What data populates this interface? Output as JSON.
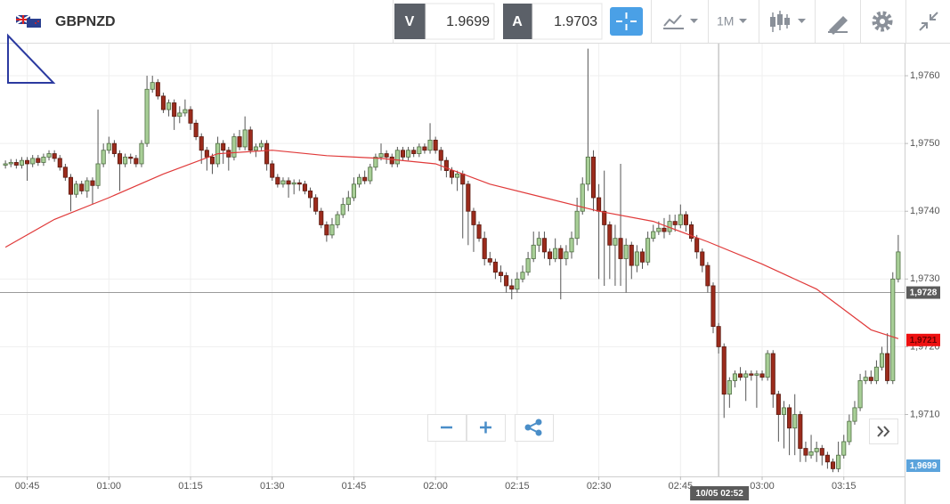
{
  "toolbar": {
    "symbol": "GBPNZD",
    "bid_label": "V",
    "bid": "1.9699",
    "ask_label": "A",
    "ask": "1.9703",
    "timeframe": "1M"
  },
  "chart_data": {
    "type": "candlestick",
    "x": [
      "00:41",
      "00:42",
      "00:43",
      "00:44",
      "00:45",
      "00:46",
      "00:47",
      "00:48",
      "00:49",
      "00:50",
      "00:51",
      "00:52",
      "00:53",
      "00:54",
      "00:55",
      "00:56",
      "00:57",
      "00:58",
      "00:59",
      "01:00",
      "01:01",
      "01:02",
      "01:03",
      "01:04",
      "01:05",
      "01:06",
      "01:07",
      "01:08",
      "01:09",
      "01:10",
      "01:11",
      "01:12",
      "01:13",
      "01:14",
      "01:15",
      "01:16",
      "01:17",
      "01:18",
      "01:19",
      "01:20",
      "01:21",
      "01:22",
      "01:23",
      "01:24",
      "01:25",
      "01:26",
      "01:27",
      "01:28",
      "01:29",
      "01:30",
      "01:31",
      "01:32",
      "01:33",
      "01:34",
      "01:35",
      "01:36",
      "01:37",
      "01:38",
      "01:39",
      "01:40",
      "01:41",
      "01:42",
      "01:43",
      "01:44",
      "01:45",
      "01:46",
      "01:47",
      "01:48",
      "01:49",
      "01:50",
      "01:51",
      "01:52",
      "01:53",
      "01:54",
      "01:55",
      "01:56",
      "01:57",
      "01:58",
      "01:59",
      "02:00",
      "02:01",
      "02:02",
      "02:03",
      "02:04",
      "02:05",
      "02:06",
      "02:07",
      "02:08",
      "02:09",
      "02:10",
      "02:11",
      "02:12",
      "02:13",
      "02:14",
      "02:15",
      "02:16",
      "02:17",
      "02:18",
      "02:19",
      "02:20",
      "02:21",
      "02:22",
      "02:23",
      "02:24",
      "02:25",
      "02:26",
      "02:27",
      "02:28",
      "02:29",
      "02:30",
      "02:31",
      "02:32",
      "02:33",
      "02:34",
      "02:35",
      "02:36",
      "02:37",
      "02:38",
      "02:39",
      "02:40",
      "02:41",
      "02:42",
      "02:43",
      "02:44",
      "02:45",
      "02:46",
      "02:47",
      "02:48",
      "02:49",
      "02:50",
      "02:51",
      "02:52",
      "02:53",
      "02:54",
      "02:55",
      "02:56",
      "02:57",
      "02:58",
      "02:59",
      "03:00",
      "03:01",
      "03:02",
      "03:03",
      "03:04",
      "03:05",
      "03:06",
      "03:07",
      "03:08",
      "03:09",
      "03:10",
      "03:11",
      "03:12",
      "03:13",
      "03:14",
      "03:15",
      "03:16",
      "03:17",
      "03:18",
      "03:19",
      "03:20",
      "03:21",
      "03:22",
      "03:23",
      "03:24",
      "03:25"
    ],
    "ohlc": [
      [
        1.97468,
        1.97475,
        1.97463,
        1.9747
      ],
      [
        1.9747,
        1.97477,
        1.97465,
        1.97472
      ],
      [
        1.97472,
        1.97477,
        1.97463,
        1.97468
      ],
      [
        1.97468,
        1.9748,
        1.97463,
        1.97475
      ],
      [
        1.97475,
        1.9748,
        1.97445,
        1.9747
      ],
      [
        1.9747,
        1.97483,
        1.97465,
        1.97478
      ],
      [
        1.97478,
        1.97483,
        1.97467,
        1.97472
      ],
      [
        1.97472,
        1.97485,
        1.97467,
        1.9748
      ],
      [
        1.9748,
        1.9749,
        1.97475,
        1.97485
      ],
      [
        1.97485,
        1.9749,
        1.97473,
        1.97478
      ],
      [
        1.97478,
        1.97483,
        1.9746,
        1.97465
      ],
      [
        1.97465,
        1.9747,
        1.97445,
        1.9745
      ],
      [
        1.9745,
        1.97455,
        1.974,
        1.97425
      ],
      [
        1.97425,
        1.97445,
        1.9742,
        1.9744
      ],
      [
        1.9744,
        1.97445,
        1.97425,
        1.9743
      ],
      [
        1.9743,
        1.9745,
        1.9742,
        1.97445
      ],
      [
        1.97445,
        1.9745,
        1.9741,
        1.97438
      ],
      [
        1.97438,
        1.9755,
        1.97433,
        1.9747
      ],
      [
        1.9747,
        1.975,
        1.97465,
        1.9749
      ],
      [
        1.9749,
        1.9751,
        1.97485,
        1.975
      ],
      [
        1.975,
        1.97505,
        1.9748,
        1.97485
      ],
      [
        1.97485,
        1.9749,
        1.9743,
        1.9747
      ],
      [
        1.9747,
        1.97485,
        1.97465,
        1.9748
      ],
      [
        1.9748,
        1.97485,
        1.9747,
        1.97478
      ],
      [
        1.97478,
        1.97483,
        1.97465,
        1.9747
      ],
      [
        1.9747,
        1.97505,
        1.97465,
        1.975
      ],
      [
        1.975,
        1.976,
        1.97495,
        1.9758
      ],
      [
        1.9758,
        1.976,
        1.97575,
        1.9759
      ],
      [
        1.9759,
        1.97595,
        1.97565,
        1.9757
      ],
      [
        1.9757,
        1.97575,
        1.97545,
        1.9755
      ],
      [
        1.9755,
        1.97565,
        1.9754,
        1.9756
      ],
      [
        1.9756,
        1.97565,
        1.9752,
        1.9754
      ],
      [
        1.9754,
        1.97555,
        1.9753,
        1.97545
      ],
      [
        1.97545,
        1.97565,
        1.9754,
        1.9755
      ],
      [
        1.9755,
        1.97555,
        1.9752,
        1.9753
      ],
      [
        1.9753,
        1.97535,
        1.97505,
        1.9751
      ],
      [
        1.9751,
        1.97515,
        1.9747,
        1.9749
      ],
      [
        1.9749,
        1.97495,
        1.9746,
        1.9748
      ],
      [
        1.9748,
        1.97485,
        1.97455,
        1.9747
      ],
      [
        1.9747,
        1.9751,
        1.97465,
        1.975
      ],
      [
        1.975,
        1.97505,
        1.9747,
        1.9749
      ],
      [
        1.9749,
        1.97495,
        1.9746,
        1.9748
      ],
      [
        1.9748,
        1.97515,
        1.97475,
        1.9751
      ],
      [
        1.9751,
        1.9752,
        1.9749,
        1.97495
      ],
      [
        1.97495,
        1.9754,
        1.9749,
        1.9752
      ],
      [
        1.9752,
        1.97525,
        1.97485,
        1.9749
      ],
      [
        1.9749,
        1.975,
        1.9748,
        1.97495
      ],
      [
        1.97495,
        1.97505,
        1.9749,
        1.975
      ],
      [
        1.975,
        1.97505,
        1.9746,
        1.9747
      ],
      [
        1.9747,
        1.97475,
        1.97445,
        1.9745
      ],
      [
        1.9745,
        1.97455,
        1.97435,
        1.9744
      ],
      [
        1.9744,
        1.9745,
        1.97435,
        1.97445
      ],
      [
        1.97445,
        1.9745,
        1.9742,
        1.9744
      ],
      [
        1.9744,
        1.97447,
        1.97425,
        1.97442
      ],
      [
        1.97442,
        1.97447,
        1.9743,
        1.9744
      ],
      [
        1.9744,
        1.97445,
        1.97425,
        1.9743
      ],
      [
        1.9743,
        1.97435,
        1.97405,
        1.9742
      ],
      [
        1.9742,
        1.97425,
        1.97395,
        1.974
      ],
      [
        1.974,
        1.97405,
        1.97375,
        1.9738
      ],
      [
        1.9738,
        1.97385,
        1.97355,
        1.97365
      ],
      [
        1.97365,
        1.9739,
        1.9736,
        1.9738
      ],
      [
        1.9738,
        1.974,
        1.97375,
        1.97395
      ],
      [
        1.97395,
        1.9742,
        1.9739,
        1.9741
      ],
      [
        1.9741,
        1.9743,
        1.974,
        1.9742
      ],
      [
        1.9742,
        1.9745,
        1.97415,
        1.9744
      ],
      [
        1.9744,
        1.97455,
        1.97435,
        1.9745
      ],
      [
        1.9745,
        1.9746,
        1.9744,
        1.97445
      ],
      [
        1.97445,
        1.9747,
        1.9744,
        1.97465
      ],
      [
        1.97465,
        1.97485,
        1.9746,
        1.9748
      ],
      [
        1.9748,
        1.975,
        1.97475,
        1.97485
      ],
      [
        1.97485,
        1.9749,
        1.9747,
        1.9748
      ],
      [
        1.9748,
        1.97485,
        1.97465,
        1.9747
      ],
      [
        1.9747,
        1.97495,
        1.97465,
        1.9749
      ],
      [
        1.9749,
        1.97495,
        1.97475,
        1.9748
      ],
      [
        1.9748,
        1.97495,
        1.97475,
        1.9749
      ],
      [
        1.9749,
        1.97495,
        1.9748,
        1.97485
      ],
      [
        1.97485,
        1.975,
        1.9748,
        1.97495
      ],
      [
        1.97495,
        1.975,
        1.97485,
        1.9749
      ],
      [
        1.9749,
        1.9753,
        1.97485,
        1.97505
      ],
      [
        1.97505,
        1.9751,
        1.97485,
        1.9749
      ],
      [
        1.9749,
        1.97495,
        1.9746,
        1.97475
      ],
      [
        1.97475,
        1.9748,
        1.9745,
        1.9746
      ],
      [
        1.9746,
        1.97465,
        1.9744,
        1.9745
      ],
      [
        1.9745,
        1.9746,
        1.9743,
        1.97455
      ],
      [
        1.97455,
        1.9746,
        1.9736,
        1.9744
      ],
      [
        1.9744,
        1.97445,
        1.9735,
        1.974
      ],
      [
        1.974,
        1.97405,
        1.9734,
        1.9738
      ],
      [
        1.9738,
        1.97385,
        1.97355,
        1.9736
      ],
      [
        1.9736,
        1.9737,
        1.9732,
        1.9733
      ],
      [
        1.9733,
        1.9734,
        1.9732,
        1.97325
      ],
      [
        1.97325,
        1.9733,
        1.973,
        1.9731
      ],
      [
        1.9731,
        1.9732,
        1.97295,
        1.97305
      ],
      [
        1.97305,
        1.9731,
        1.9728,
        1.9729
      ],
      [
        1.9729,
        1.973,
        1.9727,
        1.97285
      ],
      [
        1.97285,
        1.9731,
        1.9728,
        1.973
      ],
      [
        1.973,
        1.9732,
        1.97295,
        1.9731
      ],
      [
        1.9731,
        1.9734,
        1.97305,
        1.9733
      ],
      [
        1.9733,
        1.9737,
        1.97325,
        1.9735
      ],
      [
        1.9735,
        1.9737,
        1.9734,
        1.9736
      ],
      [
        1.9736,
        1.9737,
        1.9733,
        1.9734
      ],
      [
        1.9734,
        1.97345,
        1.9732,
        1.9733
      ],
      [
        1.9733,
        1.9736,
        1.97325,
        1.97345
      ],
      [
        1.97345,
        1.9735,
        1.9727,
        1.9733
      ],
      [
        1.9733,
        1.9735,
        1.9732,
        1.9734
      ],
      [
        1.9734,
        1.9737,
        1.9733,
        1.9736
      ],
      [
        1.9736,
        1.9742,
        1.9735,
        1.974
      ],
      [
        1.974,
        1.9745,
        1.97395,
        1.9744
      ],
      [
        1.9744,
        1.9764,
        1.9743,
        1.9748
      ],
      [
        1.9748,
        1.9749,
        1.974,
        1.9742
      ],
      [
        1.9742,
        1.9744,
        1.973,
        1.974
      ],
      [
        1.974,
        1.9746,
        1.9729,
        1.9738
      ],
      [
        1.9738,
        1.97385,
        1.973,
        1.9735
      ],
      [
        1.9735,
        1.9738,
        1.9729,
        1.9736
      ],
      [
        1.9736,
        1.9747,
        1.9729,
        1.9733
      ],
      [
        1.9733,
        1.9736,
        1.9728,
        1.9735
      ],
      [
        1.9735,
        1.97355,
        1.973,
        1.9732
      ],
      [
        1.9732,
        1.9735,
        1.9731,
        1.9734
      ],
      [
        1.9734,
        1.97345,
        1.97315,
        1.97325
      ],
      [
        1.97325,
        1.9737,
        1.9732,
        1.9736
      ],
      [
        1.9736,
        1.9738,
        1.97355,
        1.9737
      ],
      [
        1.9737,
        1.97385,
        1.97365,
        1.97375
      ],
      [
        1.97375,
        1.9739,
        1.9736,
        1.9737
      ],
      [
        1.9737,
        1.97395,
        1.97365,
        1.97385
      ],
      [
        1.97385,
        1.97395,
        1.9737,
        1.9738
      ],
      [
        1.9738,
        1.9741,
        1.97375,
        1.97395
      ],
      [
        1.97395,
        1.974,
        1.9737,
        1.9738
      ],
      [
        1.9738,
        1.97385,
        1.97355,
        1.9736
      ],
      [
        1.9736,
        1.97365,
        1.9733,
        1.9734
      ],
      [
        1.9734,
        1.97345,
        1.9731,
        1.9732
      ],
      [
        1.9732,
        1.97325,
        1.9728,
        1.9729
      ],
      [
        1.9729,
        1.97295,
        1.9722,
        1.9723
      ],
      [
        1.9723,
        1.97235,
        1.9719,
        1.972
      ],
      [
        1.972,
        1.97205,
        1.97095,
        1.9713
      ],
      [
        1.9713,
        1.97155,
        1.9711,
        1.9715
      ],
      [
        1.9715,
        1.97165,
        1.9714,
        1.9716
      ],
      [
        1.9716,
        1.9717,
        1.9715,
        1.97155
      ],
      [
        1.97155,
        1.97165,
        1.9712,
        1.9716
      ],
      [
        1.9716,
        1.97165,
        1.9715,
        1.97158
      ],
      [
        1.97158,
        1.97165,
        1.9711,
        1.9716
      ],
      [
        1.9716,
        1.97165,
        1.9715,
        1.97155
      ],
      [
        1.97155,
        1.97195,
        1.9715,
        1.9719
      ],
      [
        1.9719,
        1.97195,
        1.9711,
        1.9713
      ],
      [
        1.9713,
        1.97135,
        1.9706,
        1.971
      ],
      [
        1.971,
        1.9712,
        1.9705,
        1.9711
      ],
      [
        1.9711,
        1.97115,
        1.9704,
        1.9708
      ],
      [
        1.9708,
        1.9713,
        1.9704,
        1.971
      ],
      [
        1.971,
        1.97105,
        1.9703,
        1.9705
      ],
      [
        1.9705,
        1.9706,
        1.9703,
        1.9704
      ],
      [
        1.9704,
        1.9707,
        1.97035,
        1.97045
      ],
      [
        1.97045,
        1.9706,
        1.9703,
        1.9705
      ],
      [
        1.9705,
        1.97055,
        1.97025,
        1.9704
      ],
      [
        1.9704,
        1.97045,
        1.9702,
        1.9703
      ],
      [
        1.9703,
        1.97035,
        1.97015,
        1.9702
      ],
      [
        1.9702,
        1.9706,
        1.97015,
        1.9704
      ],
      [
        1.9704,
        1.9707,
        1.97035,
        1.9706
      ],
      [
        1.9706,
        1.971,
        1.97055,
        1.9709
      ],
      [
        1.9709,
        1.9712,
        1.97085,
        1.9711
      ],
      [
        1.9711,
        1.9716,
        1.97105,
        1.9715
      ],
      [
        1.9715,
        1.97165,
        1.97145,
        1.97155
      ],
      [
        1.97155,
        1.97165,
        1.97145,
        1.9715
      ],
      [
        1.9715,
        1.9718,
        1.97145,
        1.9717
      ],
      [
        1.9717,
        1.972,
        1.97165,
        1.9719
      ],
      [
        1.9719,
        1.9722,
        1.97145,
        1.9715
      ],
      [
        1.9715,
        1.9731,
        1.97145,
        1.973
      ],
      [
        1.973,
        1.97365,
        1.97295,
        1.9734
      ]
    ],
    "colors": {
      "up": "#a8cf97",
      "up_edge": "#4f6e42",
      "down": "#9b2b1c",
      "down_edge": "#5a1a10"
    },
    "ma": {
      "color": "#e03a3a",
      "x": [
        "00:41",
        "00:50",
        "01:00",
        "01:10",
        "01:20",
        "01:30",
        "01:40",
        "01:50",
        "02:00",
        "02:10",
        "02:20",
        "02:30",
        "02:40",
        "02:50",
        "03:00",
        "03:10",
        "03:20",
        "03:25"
      ],
      "values": [
        1.97347,
        1.97388,
        1.9742,
        1.97455,
        1.97485,
        1.9749,
        1.97482,
        1.97478,
        1.9747,
        1.9744,
        1.9742,
        1.974,
        1.97385,
        1.97355,
        1.97322,
        1.97285,
        1.97225,
        1.97212
      ]
    },
    "xlim": [
      "00:40",
      "03:26"
    ],
    "xticks": [
      "00:45",
      "01:00",
      "01:15",
      "01:30",
      "01:45",
      "02:00",
      "02:15",
      "02:30",
      "02:45",
      "03:00",
      "03:15"
    ],
    "ylim": [
      1.9701,
      1.9765
    ],
    "yticks": [
      {
        "value": 1.971,
        "label": "1,9710"
      },
      {
        "value": 1.972,
        "label": "1,9720"
      },
      {
        "value": 1.973,
        "label": "1,9730"
      },
      {
        "value": 1.974,
        "label": "1,9740"
      },
      {
        "value": 1.975,
        "label": "1,9750"
      },
      {
        "value": 1.976,
        "label": "1,9760"
      }
    ],
    "grid": true,
    "price_line": {
      "value": 1.9728,
      "label": "1,9728",
      "color": "#5b5b5b"
    },
    "ma_label": {
      "value": 1.9721,
      "label": "1,9721",
      "color": "#ee1111"
    },
    "bid_marker": {
      "value": 1.9699,
      "label": "1,9699",
      "color": "#5ba3dc"
    },
    "crosshair": {
      "label": "10/05 02:52"
    }
  }
}
